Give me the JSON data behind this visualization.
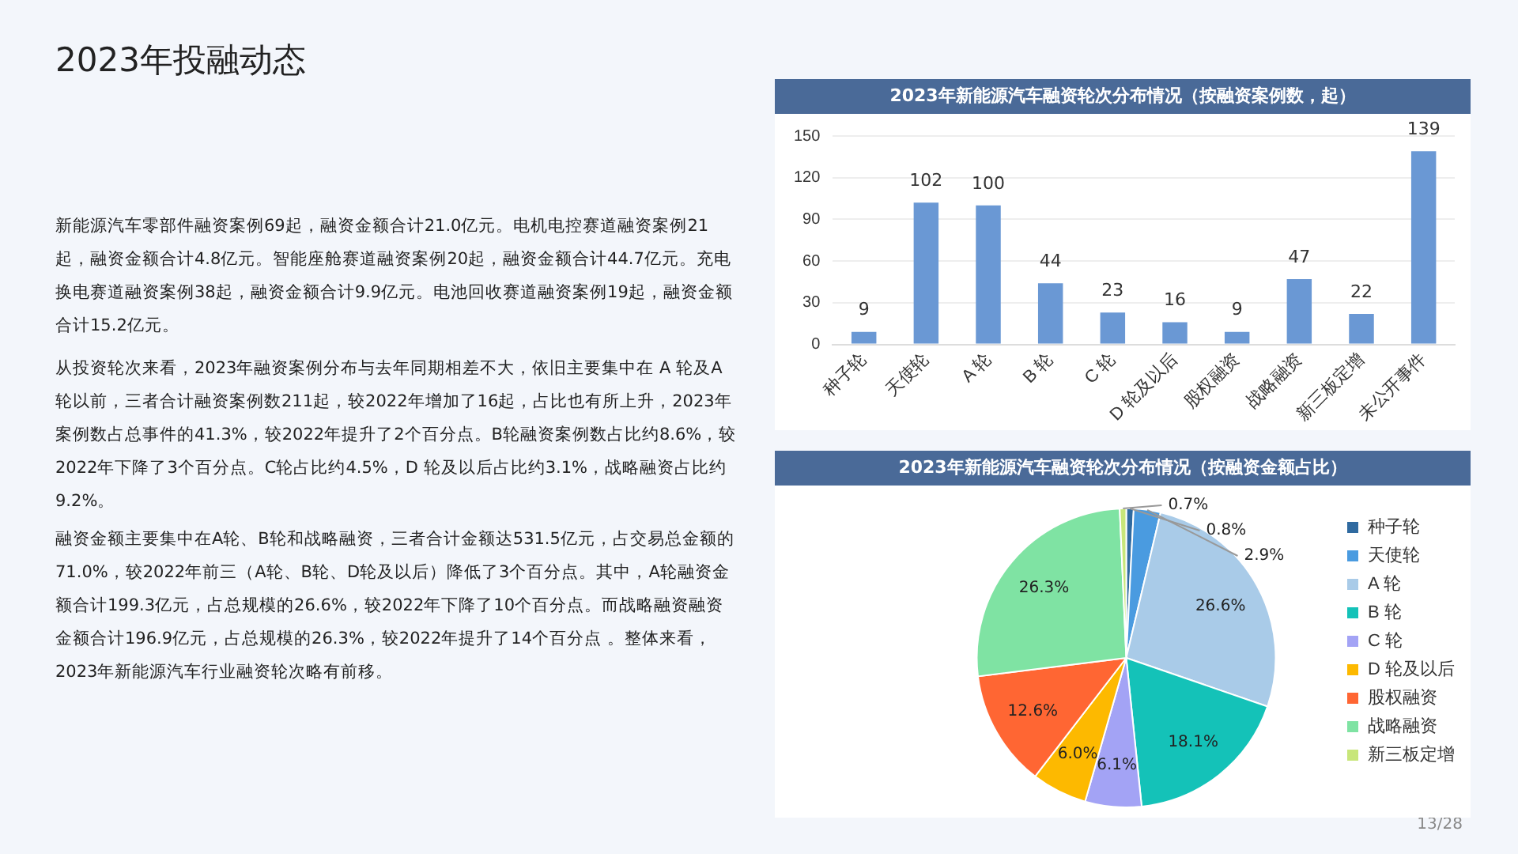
{
  "chart_data": [
    {
      "type": "other",
      "title": "2023年投融动态",
      "annotations": [
        "新能源汽车零部件融资案例69起，融资金额合计21.0亿元。电机电控赛道融资案例21起，融资金额合计4.8亿元。智能座舱赛道融资案例20起，融资金额合计44.7亿元。充电换电赛道融资案例38起，融资金额合计9.9亿元。电池回收赛道融资案例19起，融资金额合计15.2亿元。",
        "从投资轮次来看，2023年融资案例分布与去年同期相差不大，依旧主要集中在 A 轮及A轮以前，三者合计融资案例数211起，较2022年增加了16起，占比也有所上升，2023年案例数占总事件的41.3%，较2022年提升了2个百分点。B轮融资案例数占比约8.6%，较2022年下降了3个百分点。C轮占比约4.5%，D 轮及以后占比约3.1%，战略融资占比约9.2%。",
        "融资金额主要集中在A轮、B轮和战略融资，三者合计金额达531.5亿元，占交易总金额的71.0%，较2022年前三（A轮、B轮、D轮及以后）降低了3个百分点。其中，A轮融资金额合计199.3亿元，占总规模的26.6%，较2022年下降了10个百分点。而战略融资融资金额合计196.9亿元，占总规模的26.3%，较2022年提升了14个百分点 。整体来看，2023年新能源汽车行业融资轮次略有前移。",
        "13/28"
      ]
    },
    {
      "type": "bar",
      "title": "2023年新能源汽车融资轮次分布情况（按融资案例数，起）",
      "categories": [
        "种子轮",
        "天使轮",
        "A 轮",
        "B 轮",
        "C 轮",
        "D 轮及以后",
        "股权融资",
        "战略融资",
        "新三板定增",
        "未公开事件"
      ],
      "values": [
        9,
        102,
        100,
        44,
        23,
        16,
        9,
        47,
        22,
        139
      ],
      "color": "#6a98d4",
      "ylim": [
        0,
        150
      ],
      "yticks": [
        0,
        30,
        60,
        90,
        120,
        150
      ],
      "grid": "y",
      "data_labels": true
    },
    {
      "type": "pie",
      "title": "2023年新能源汽车融资轮次分布情况（按融资金额占比）",
      "categories": [
        "种子轮",
        "天使轮",
        "A 轮",
        "B 轮",
        "C 轮",
        "D 轮及以后",
        "股权融资",
        "战略融资",
        "新三板定增"
      ],
      "values": [
        0.8,
        2.9,
        26.6,
        18.1,
        6.1,
        6.0,
        12.6,
        26.3,
        0.7
      ],
      "colors": [
        "#2f6aa0",
        "#4a9be0",
        "#a9cbe8",
        "#14c2b8",
        "#a3a3f5",
        "#fdb900",
        "#ff6633",
        "#7fe3a3",
        "#c8e67a"
      ],
      "value_labels": [
        "0.8%",
        "2.9%",
        "26.6%",
        "18.1%",
        "6.1%",
        "6.0%",
        "12.6%",
        "26.3%",
        "0.7%"
      ],
      "legend": "right"
    }
  ]
}
